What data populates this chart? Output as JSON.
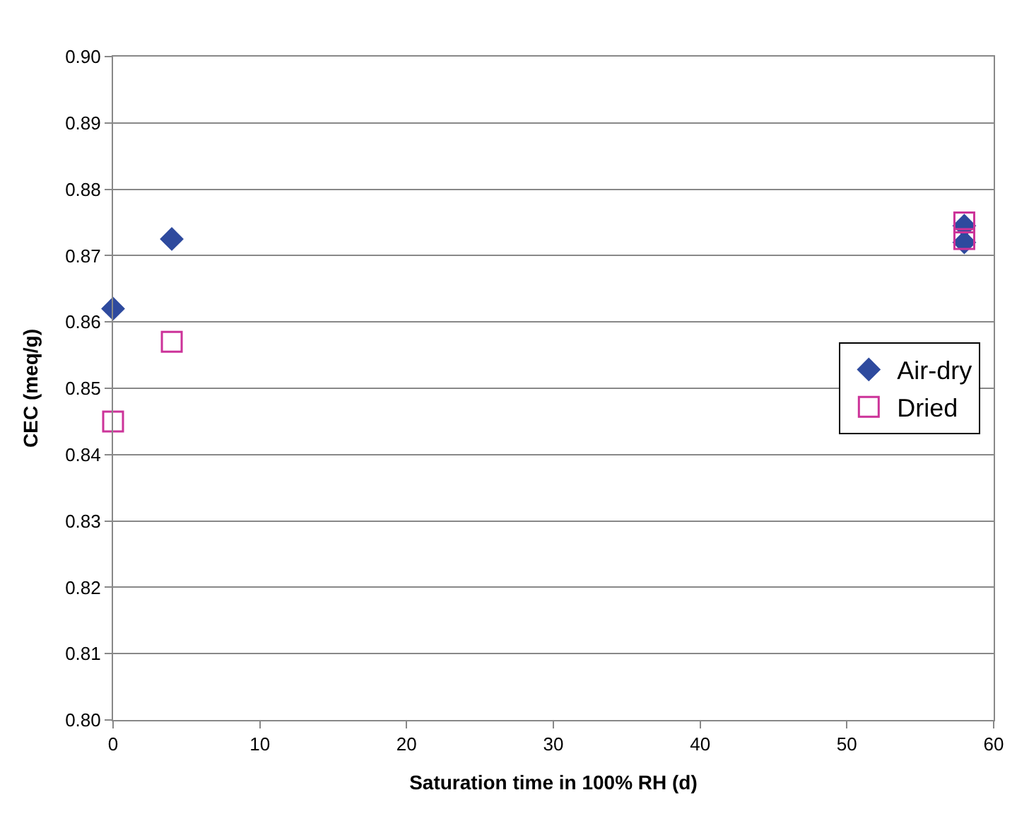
{
  "chart_data": {
    "type": "scatter",
    "xlabel": "Saturation time in 100% RH (d)",
    "ylabel": "CEC (meq/g)",
    "xlim": [
      0,
      60
    ],
    "xticks": [
      0,
      10,
      20,
      30,
      40,
      50,
      60
    ],
    "ylim": [
      0.8,
      0.9
    ],
    "yticks": [
      {
        "value": 0.8,
        "label": "0.80"
      },
      {
        "value": 0.81,
        "label": "0.81"
      },
      {
        "value": 0.82,
        "label": "0.82"
      },
      {
        "value": 0.83,
        "label": "0.83"
      },
      {
        "value": 0.84,
        "label": "0.84"
      },
      {
        "value": 0.85,
        "label": "0.85"
      },
      {
        "value": 0.86,
        "label": "0.86"
      },
      {
        "value": 0.87,
        "label": "0.87"
      },
      {
        "value": 0.88,
        "label": "0.88"
      },
      {
        "value": 0.89,
        "label": "0.89"
      },
      {
        "value": 0.9,
        "label": "0.90"
      }
    ],
    "grid": "y",
    "legend": "right",
    "series": [
      {
        "name": "Air-dry",
        "color": "#2e4a9e",
        "marker": "diamond",
        "x": [
          0,
          4,
          58,
          58
        ],
        "values": [
          0.862,
          0.8725,
          0.8745,
          0.872
        ]
      },
      {
        "name": "Dried",
        "color": "#cc3399",
        "marker": "square",
        "x": [
          0,
          4,
          58,
          58
        ],
        "values": [
          0.845,
          0.857,
          0.875,
          0.8725
        ]
      }
    ]
  }
}
